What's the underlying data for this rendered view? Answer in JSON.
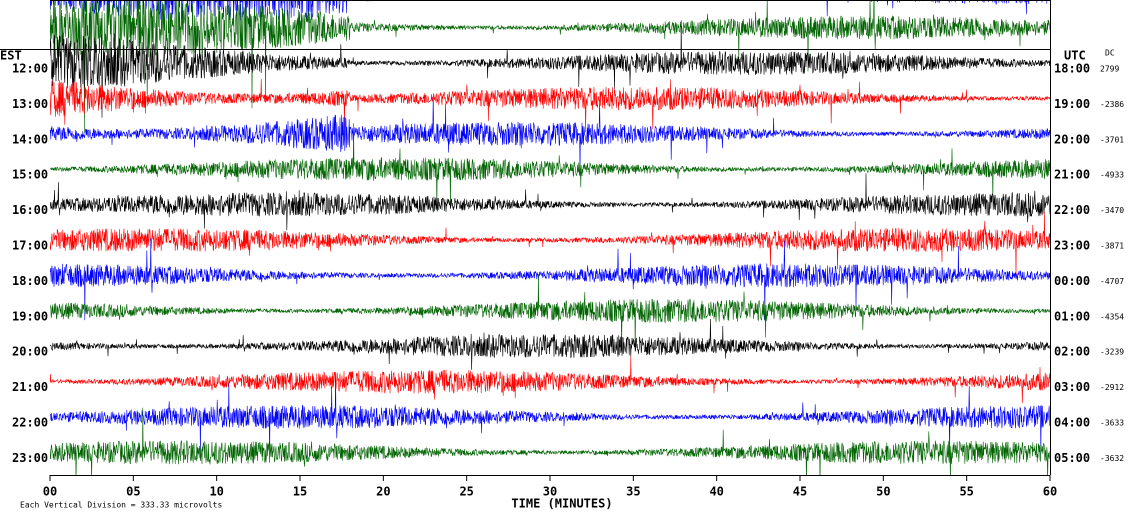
{
  "chart_data": {
    "type": "helicorder",
    "left_axis_label": "EST",
    "right_axis_label": "UTC",
    "offset_label": "DC",
    "rows": [
      {
        "est": "12:00",
        "utc": "18:00",
        "dc": 2799
      },
      {
        "est": "13:00",
        "utc": "19:00",
        "dc": -2386
      },
      {
        "est": "14:00",
        "utc": "20:00",
        "dc": -3701
      },
      {
        "est": "15:00",
        "utc": "21:00",
        "dc": -4933
      },
      {
        "est": "16:00",
        "utc": "22:00",
        "dc": -3470
      },
      {
        "est": "17:00",
        "utc": "23:00",
        "dc": -3871
      },
      {
        "est": "18:00",
        "utc": "00:00",
        "dc": -4707
      },
      {
        "est": "19:00",
        "utc": "01:00",
        "dc": -4354
      },
      {
        "est": "20:00",
        "utc": "02:00",
        "dc": -3239
      },
      {
        "est": "21:00",
        "utc": "03:00",
        "dc": -2912
      },
      {
        "est": "22:00",
        "utc": "04:00",
        "dc": -3633
      },
      {
        "est": "23:00",
        "utc": "05:00",
        "dc": -3632
      }
    ],
    "trace_colors": [
      "#000000",
      "#ff0000",
      "#0000ff",
      "#006400"
    ],
    "xlabel": "TIME (MINUTES)",
    "xlim": [
      0,
      60
    ],
    "xticks": [
      {
        "value": 0,
        "label": "00"
      },
      {
        "value": 5,
        "label": "05"
      },
      10,
      15,
      20,
      25,
      30,
      35,
      40,
      45,
      50,
      55,
      60
    ],
    "footer": "Each Vertical Division =  333.33 microvolts"
  }
}
